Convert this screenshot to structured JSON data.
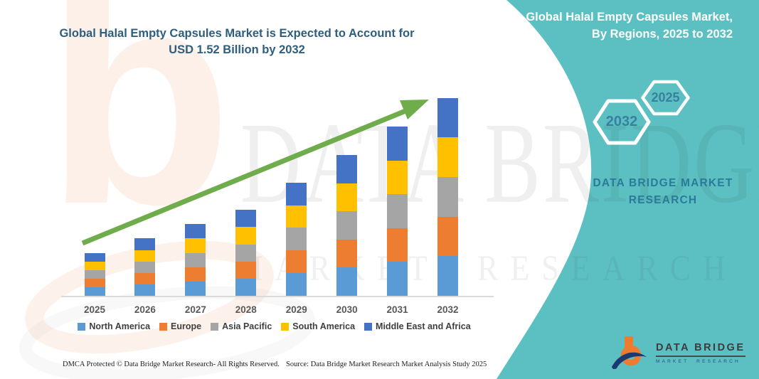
{
  "header": {
    "title_line1": "Global Halal Empty Capsules Market is Expected to Account for",
    "title_line2": "USD 1.52 Billion by 2032",
    "title_color": "#2e5e7e"
  },
  "side_panel": {
    "heading_line1": "Global Halal Empty Capsules Market,",
    "heading_line2": "By Regions, 2025 to 2032",
    "hexagon_back_label": "2032",
    "hexagon_front_label": "2025",
    "brand_line1": "DATA BRIDGE MARKET",
    "brand_line2": "RESEARCH",
    "background_color": "#5cc0c2",
    "brand_text_color": "#2a7b99",
    "hexagon_label_color": "#39809f"
  },
  "chart_data": {
    "type": "bar",
    "stacked": true,
    "title": "Global Halal Empty Capsules Market is Expected to Account for USD 1.52 Billion by 2032",
    "xlabel": "",
    "ylabel": "",
    "unit": "USD Billion",
    "ylim": [
      0,
      1.6
    ],
    "grid": false,
    "legend_position": "bottom",
    "categories": [
      "2025",
      "2026",
      "2027",
      "2028",
      "2029",
      "2030",
      "2031",
      "2032"
    ],
    "totals_usd_billion": [
      0.33,
      0.44,
      0.55,
      0.66,
      0.87,
      1.08,
      1.3,
      1.52
    ],
    "series": [
      {
        "name": "North America",
        "color": "#5B9BD5",
        "values": [
          0.066,
          0.088,
          0.11,
          0.132,
          0.174,
          0.216,
          0.26,
          0.304
        ]
      },
      {
        "name": "Europe",
        "color": "#ED7D31",
        "values": [
          0.066,
          0.088,
          0.11,
          0.132,
          0.174,
          0.216,
          0.26,
          0.304
        ]
      },
      {
        "name": "Asia Pacific",
        "color": "#A5A5A5",
        "values": [
          0.066,
          0.088,
          0.11,
          0.132,
          0.174,
          0.216,
          0.26,
          0.304
        ]
      },
      {
        "name": "South America",
        "color": "#FFC000",
        "values": [
          0.066,
          0.088,
          0.11,
          0.132,
          0.174,
          0.216,
          0.26,
          0.304
        ]
      },
      {
        "name": "Middle East and Africa",
        "color": "#4472C4",
        "values": [
          0.066,
          0.088,
          0.11,
          0.132,
          0.174,
          0.216,
          0.26,
          0.304
        ]
      }
    ],
    "trend_arrow": {
      "present": true,
      "direction": "up",
      "color": "#6fac4b"
    }
  },
  "watermark": {
    "line1": "DATA BRIDGE",
    "line2": "MARKET RESEARCH"
  },
  "logo": {
    "name": "DATA BRIDGE",
    "subtitle": "MARKET RESEARCH"
  },
  "footer": {
    "dmca": "DMCA Protected © Data Bridge Market Research-  All Rights Reserved.",
    "source": "Source: Data Bridge Market Research  Market Analysis Study 2025"
  }
}
